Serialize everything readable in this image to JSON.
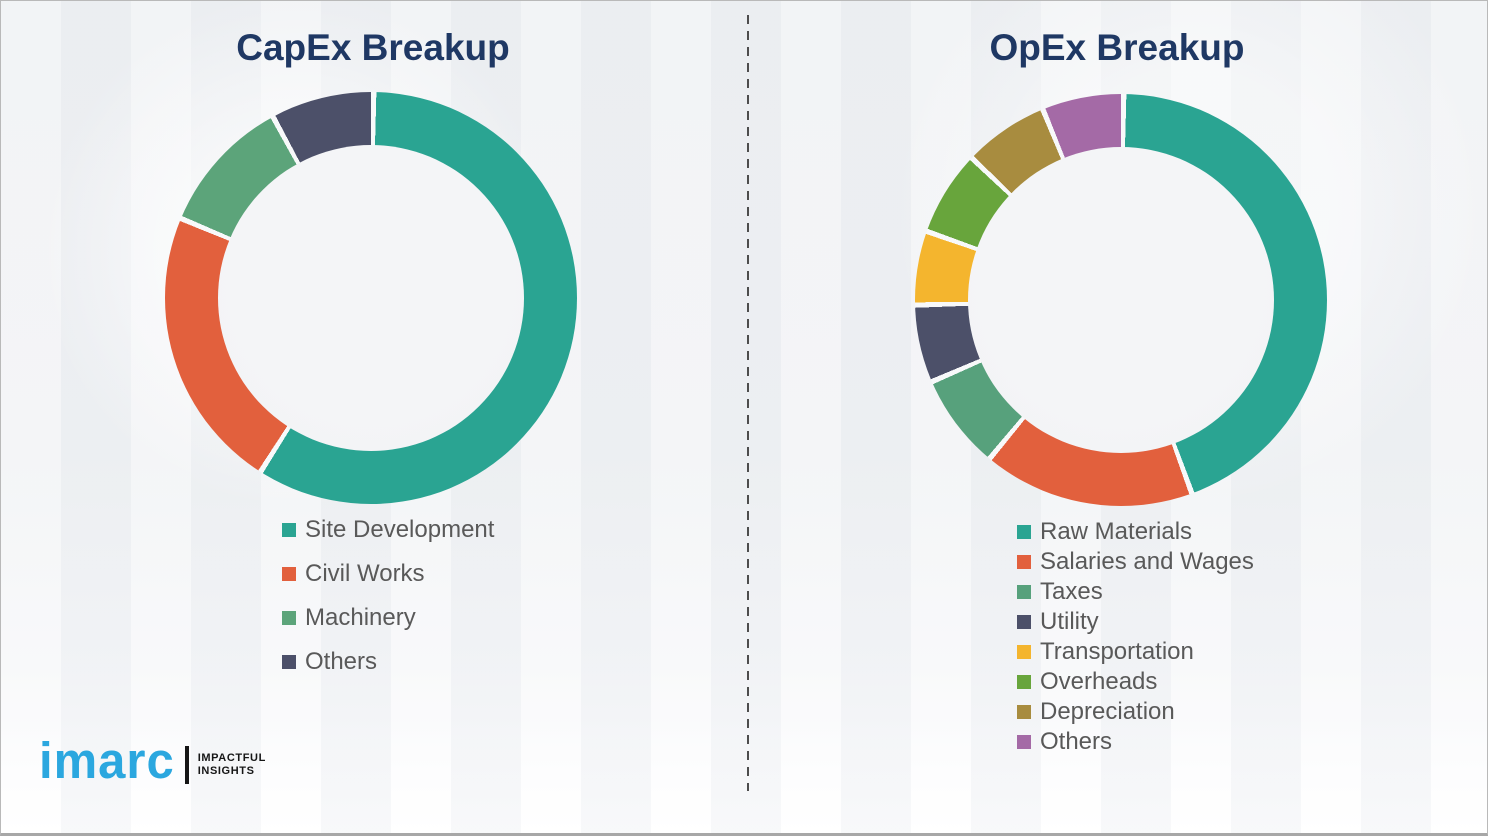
{
  "chart_data": [
    {
      "type": "pie",
      "subtype": "donut",
      "title": "CapEx Breakup",
      "categories": [
        "Site Development",
        "Civil Works",
        "Machinery",
        "Others"
      ],
      "values": [
        58.8,
        22.3,
        10.8,
        8.1
      ],
      "values_note": "percent, estimated from arc angles; no data labels shown in image",
      "colors": [
        "#2AA492",
        "#E2603D",
        "#5CA47A",
        "#4C5069"
      ],
      "start_angle_deg": 0,
      "direction": "clockwise",
      "legend_position": "below-left",
      "legend": [
        "Site Development",
        "Civil Works",
        "Machinery",
        "Others"
      ]
    },
    {
      "type": "pie",
      "subtype": "donut",
      "title": "OpEx Breakup",
      "categories": [
        "Raw Materials",
        "Salaries and Wages",
        "Taxes",
        "Utility",
        "Transportation",
        "Overheads",
        "Depreciation",
        "Others"
      ],
      "values": [
        44.2,
        16.6,
        7.5,
        6.1,
        5.8,
        6.7,
        6.7,
        6.4
      ],
      "values_note": "percent, estimated from arc angles; no data labels shown in image",
      "colors": [
        "#2AA492",
        "#E2603D",
        "#57A17C",
        "#4C5069",
        "#F4B52E",
        "#68A53C",
        "#A88C3F",
        "#A46AA6"
      ],
      "start_angle_deg": 0,
      "direction": "clockwise",
      "legend_position": "below-left",
      "legend": [
        "Raw Materials",
        "Salaries and Wages",
        "Taxes",
        "Utility",
        "Transportation",
        "Overheads",
        "Depreciation",
        "Others"
      ]
    }
  ],
  "titles": {
    "title_color": "#1F3864",
    "legend_text_color": "#595959"
  },
  "divider": {
    "style": "vertical dashed line between the two charts"
  },
  "branding": {
    "logo_text": "imarc",
    "logo_color": "#2BA7DF",
    "tagline_line1": "IMPACTFUL",
    "tagline_line2": "INSIGHTS"
  }
}
